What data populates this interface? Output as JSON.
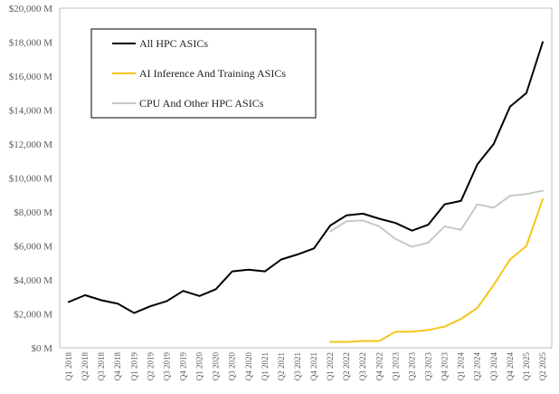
{
  "chart_data": {
    "type": "line",
    "title": "",
    "xlabel": "",
    "ylabel": "",
    "ylim": [
      0,
      20000
    ],
    "y_ticks": [
      0,
      2000,
      4000,
      6000,
      8000,
      10000,
      12000,
      14000,
      16000,
      18000,
      20000
    ],
    "y_tick_labels": [
      "$0 M",
      "$2,000 M",
      "$4,000 M",
      "$6,000 M",
      "$8,000 M",
      "$10,000 M",
      "$12,000 M",
      "$14,000 M",
      "$16,000 M",
      "$18,000 M",
      "$20,000 M"
    ],
    "categories": [
      "Q1 2018",
      "Q2 2018",
      "Q3 2018",
      "Q4 2018",
      "Q1 2019",
      "Q2 2019",
      "Q3 2019",
      "Q4 2019",
      "Q1 2020",
      "Q2 2020",
      "Q3 2020",
      "Q4 2020",
      "Q1 2021",
      "Q2 2021",
      "Q3 2021",
      "Q4 2021",
      "Q1 2022",
      "Q2 2022",
      "Q3 2022",
      "Q4 2022",
      "Q1 2023",
      "Q2 2023",
      "Q3 2023",
      "Q4 2023",
      "Q1 2024",
      "Q2 2024",
      "Q3 2024",
      "Q4 2024",
      "Q1 2025",
      "Q2 2025"
    ],
    "legend_position": "top-left",
    "series": [
      {
        "name": "All HPC ASICs",
        "color": "#000000",
        "values": [
          2700,
          3100,
          2800,
          2600,
          2050,
          2450,
          2750,
          3350,
          3050,
          3450,
          4500,
          4600,
          4500,
          5200,
          5500,
          5850,
          7200,
          7800,
          7900,
          7600,
          7350,
          6900,
          7250,
          8450,
          8650,
          10800,
          12000,
          14200,
          15000,
          18000
        ]
      },
      {
        "name": "AI Inference And Training ASICs",
        "color": "#f5c518",
        "values": [
          null,
          null,
          null,
          null,
          null,
          null,
          null,
          null,
          null,
          null,
          null,
          null,
          null,
          null,
          null,
          null,
          350,
          350,
          400,
          400,
          950,
          950,
          1050,
          1250,
          1700,
          2350,
          3700,
          5200,
          6000,
          8750
        ]
      },
      {
        "name": "CPU And Other HPC ASICs",
        "color": "#c8c8c8",
        "values": [
          null,
          null,
          null,
          null,
          null,
          null,
          null,
          null,
          null,
          null,
          null,
          null,
          null,
          null,
          null,
          null,
          6850,
          7450,
          7500,
          7150,
          6400,
          5950,
          6200,
          7150,
          6950,
          8450,
          8250,
          8950,
          9050,
          9250
        ]
      }
    ]
  }
}
